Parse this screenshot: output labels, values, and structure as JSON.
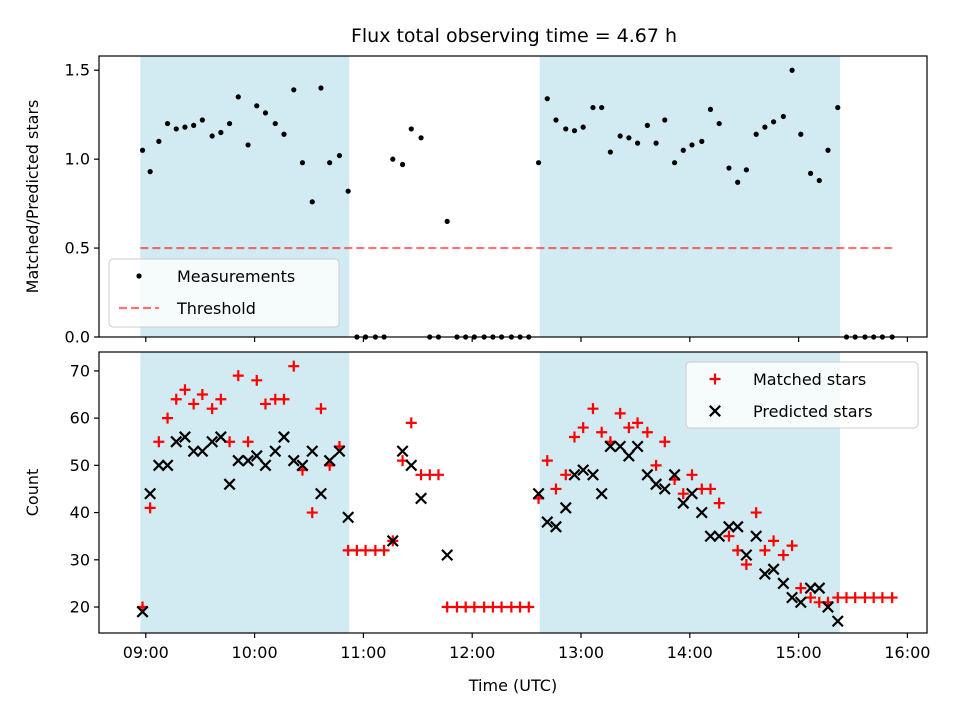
{
  "figure": {
    "title": "Flux total observing time = 4.67 h",
    "colors": {
      "shade": "#add8e6",
      "measurement": "#000000",
      "threshold": "#ff0000",
      "matched": "#ff0000",
      "predicted": "#000000"
    }
  },
  "chart_data": [
    {
      "type": "scatter",
      "ylabel": "Matched/Predicted stars",
      "xlabel": "",
      "ylim": [
        0,
        1.58
      ],
      "yticks": [
        0.0,
        0.5,
        1.0,
        1.5
      ],
      "ytick_labels": [
        "0.0",
        "0.5",
        "1.0",
        "1.5"
      ],
      "xlim": [
        8.57,
        16.18
      ],
      "xticks": [
        9,
        10,
        11,
        12,
        13,
        14,
        15,
        16
      ],
      "grid": false,
      "legend_position": "lower-left",
      "shaded_intervals": [
        [
          8.95,
          10.87
        ],
        [
          12.62,
          15.38
        ]
      ],
      "series": [
        {
          "name": "Measurements",
          "marker": "dot",
          "x": [
            8.97,
            9.04,
            9.12,
            9.2,
            9.28,
            9.36,
            9.44,
            9.52,
            9.61,
            9.69,
            9.77,
            9.85,
            9.94,
            10.02,
            10.1,
            10.19,
            10.27,
            10.36,
            10.44,
            10.53,
            10.61,
            10.69,
            10.78,
            10.86,
            10.94,
            11.02,
            11.11,
            11.19,
            11.27,
            11.36,
            11.44,
            11.53,
            11.61,
            11.69,
            11.77,
            11.86,
            11.94,
            12.02,
            12.11,
            12.19,
            12.27,
            12.36,
            12.44,
            12.52,
            12.61,
            12.69,
            12.77,
            12.86,
            12.94,
            13.02,
            13.11,
            13.19,
            13.27,
            13.36,
            13.44,
            13.52,
            13.61,
            13.69,
            13.77,
            13.86,
            13.94,
            14.02,
            14.11,
            14.19,
            14.27,
            14.36,
            14.44,
            14.52,
            14.61,
            14.69,
            14.77,
            14.86,
            14.94,
            15.02,
            15.11,
            15.19,
            15.27,
            15.36,
            15.44,
            15.52,
            15.61,
            15.69,
            15.77,
            15.86
          ],
          "y": [
            1.05,
            0.93,
            1.1,
            1.2,
            1.17,
            1.18,
            1.19,
            1.22,
            1.13,
            1.15,
            1.2,
            1.35,
            1.08,
            1.3,
            1.26,
            1.2,
            1.14,
            1.39,
            0.98,
            0.76,
            1.4,
            0.98,
            1.02,
            0.82,
            0,
            0,
            0,
            0,
            1.0,
            0.97,
            1.17,
            1.12,
            0,
            0,
            0.65,
            0,
            0,
            0,
            0,
            0,
            0,
            0,
            0,
            0,
            0.98,
            1.34,
            1.22,
            1.17,
            1.16,
            1.18,
            1.29,
            1.29,
            1.04,
            1.13,
            1.12,
            1.09,
            1.19,
            1.09,
            1.22,
            0.98,
            1.05,
            1.08,
            1.1,
            1.28,
            1.2,
            0.95,
            0.87,
            0.94,
            1.14,
            1.18,
            1.21,
            1.24,
            1.5,
            1.14,
            0.92,
            0.88,
            1.05,
            1.29,
            0,
            0,
            0,
            0,
            0,
            0
          ]
        },
        {
          "name": "Threshold",
          "style": "dashed",
          "x": [
            8.95,
            15.86
          ],
          "y": [
            0.5,
            0.5
          ]
        }
      ]
    },
    {
      "type": "scatter",
      "ylabel": "Count",
      "xlabel": "Time (UTC)",
      "ylim": [
        14.5,
        74
      ],
      "yticks": [
        20,
        30,
        40,
        50,
        60,
        70
      ],
      "ytick_labels": [
        "20",
        "30",
        "40",
        "50",
        "60",
        "70"
      ],
      "xlim": [
        8.57,
        16.18
      ],
      "xticks": [
        9,
        10,
        11,
        12,
        13,
        14,
        15,
        16
      ],
      "xtick_labels": [
        "09:00",
        "10:00",
        "11:00",
        "12:00",
        "13:00",
        "14:00",
        "15:00",
        "16:00"
      ],
      "grid": false,
      "legend_position": "upper-right",
      "shaded_intervals": [
        [
          8.95,
          10.87
        ],
        [
          12.62,
          15.38
        ]
      ],
      "series": [
        {
          "name": "Matched stars",
          "marker": "plus",
          "x": [
            8.97,
            9.04,
            9.12,
            9.2,
            9.28,
            9.36,
            9.44,
            9.52,
            9.61,
            9.69,
            9.77,
            9.85,
            9.94,
            10.02,
            10.1,
            10.19,
            10.27,
            10.36,
            10.44,
            10.53,
            10.61,
            10.69,
            10.78,
            10.86,
            10.94,
            11.02,
            11.11,
            11.19,
            11.27,
            11.36,
            11.44,
            11.53,
            11.61,
            11.69,
            11.77,
            11.86,
            11.94,
            12.02,
            12.11,
            12.19,
            12.27,
            12.36,
            12.44,
            12.52,
            12.61,
            12.69,
            12.77,
            12.86,
            12.94,
            13.02,
            13.11,
            13.19,
            13.27,
            13.36,
            13.44,
            13.52,
            13.61,
            13.69,
            13.77,
            13.86,
            13.94,
            14.02,
            14.11,
            14.19,
            14.27,
            14.36,
            14.44,
            14.52,
            14.61,
            14.69,
            14.77,
            14.86,
            14.94,
            15.02,
            15.11,
            15.19,
            15.27,
            15.36,
            15.44,
            15.52,
            15.61,
            15.69,
            15.77,
            15.86
          ],
          "y": [
            20,
            41,
            55,
            60,
            64,
            66,
            63,
            65,
            62,
            64,
            55,
            69,
            55,
            68,
            63,
            64,
            64,
            71,
            49,
            40,
            62,
            50,
            54,
            32,
            32,
            32,
            32,
            32,
            34,
            51,
            59,
            48,
            48,
            48,
            20,
            20,
            20,
            20,
            20,
            20,
            20,
            20,
            20,
            20,
            43,
            51,
            45,
            48,
            56,
            58,
            62,
            57,
            55,
            61,
            58,
            59,
            57,
            50,
            55,
            47,
            44,
            48,
            45,
            45,
            42,
            35,
            32,
            29,
            40,
            32,
            34,
            31,
            33,
            24,
            22,
            21,
            21,
            22,
            22,
            22,
            22,
            22,
            22,
            22
          ]
        },
        {
          "name": "Predicted stars",
          "marker": "x",
          "x": [
            8.97,
            9.04,
            9.12,
            9.2,
            9.28,
            9.36,
            9.44,
            9.52,
            9.61,
            9.69,
            9.77,
            9.85,
            9.94,
            10.02,
            10.1,
            10.19,
            10.27,
            10.36,
            10.44,
            10.53,
            10.61,
            10.69,
            10.78,
            10.86,
            11.27,
            11.36,
            11.44,
            11.53,
            11.77,
            12.61,
            12.69,
            12.77,
            12.86,
            12.94,
            13.02,
            13.11,
            13.19,
            13.27,
            13.36,
            13.44,
            13.52,
            13.61,
            13.69,
            13.77,
            13.86,
            13.94,
            14.02,
            14.11,
            14.19,
            14.27,
            14.36,
            14.44,
            14.52,
            14.61,
            14.69,
            14.77,
            14.86,
            14.94,
            15.02,
            15.11,
            15.19,
            15.27,
            15.36
          ],
          "y": [
            19,
            44,
            50,
            50,
            55,
            56,
            53,
            53,
            55,
            56,
            46,
            51,
            51,
            52,
            50,
            53,
            56,
            51,
            50,
            53,
            44,
            51,
            53,
            39,
            34,
            53,
            50,
            43,
            31,
            44,
            38,
            37,
            41,
            48,
            49,
            48,
            44,
            54,
            54,
            52,
            54,
            48,
            46,
            45,
            48,
            42,
            44,
            40,
            35,
            35,
            37,
            37,
            31,
            35,
            27,
            28,
            25,
            22,
            21,
            24,
            24,
            20,
            17
          ]
        }
      ]
    }
  ]
}
